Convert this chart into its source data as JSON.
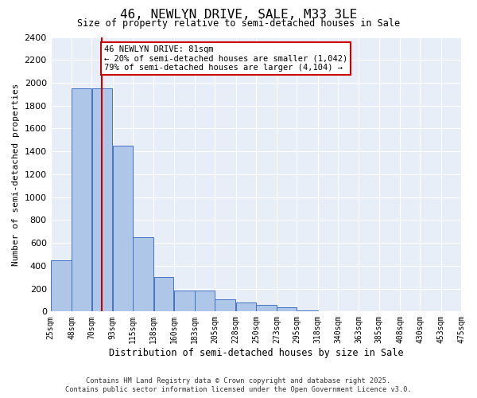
{
  "title": "46, NEWLYN DRIVE, SALE, M33 3LE",
  "subtitle": "Size of property relative to semi-detached houses in Sale",
  "xlabel": "Distribution of semi-detached houses by size in Sale",
  "ylabel": "Number of semi-detached properties",
  "footer_line1": "Contains HM Land Registry data © Crown copyright and database right 2025.",
  "footer_line2": "Contains public sector information licensed under the Open Government Licence v3.0.",
  "annotation_title": "46 NEWLYN DRIVE: 81sqm",
  "annotation_line1": "← 20% of semi-detached houses are smaller (1,042)",
  "annotation_line2": "79% of semi-detached houses are larger (4,104) →",
  "property_size": 81,
  "bar_color": "#aec6e8",
  "bar_edge_color": "#4472c4",
  "vline_color": "#cc0000",
  "annotation_box_color": "#cc0000",
  "background_color": "#e8eef8",
  "ylim": [
    0,
    2400
  ],
  "yticks": [
    0,
    200,
    400,
    600,
    800,
    1000,
    1200,
    1400,
    1600,
    1800,
    2000,
    2200,
    2400
  ],
  "bin_edges": [
    25,
    48,
    70,
    93,
    115,
    138,
    160,
    183,
    205,
    228,
    250,
    273,
    295,
    318,
    340,
    363,
    385,
    408,
    430,
    453,
    475
  ],
  "bin_labels": [
    "25sqm",
    "48sqm",
    "70sqm",
    "93sqm",
    "115sqm",
    "138sqm",
    "160sqm",
    "183sqm",
    "205sqm",
    "228sqm",
    "250sqm",
    "273sqm",
    "295sqm",
    "318sqm",
    "340sqm",
    "363sqm",
    "385sqm",
    "408sqm",
    "430sqm",
    "453sqm",
    "475sqm"
  ],
  "values": [
    450,
    1950,
    1950,
    1450,
    650,
    300,
    185,
    185,
    110,
    80,
    60,
    35,
    10,
    5,
    0,
    0,
    0,
    0,
    0,
    0
  ]
}
